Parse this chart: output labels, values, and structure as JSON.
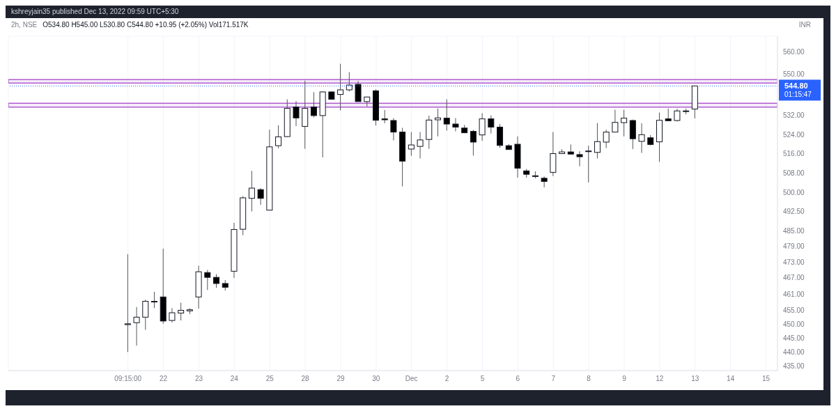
{
  "chart_data": {
    "type": "candlestick",
    "title": "2h, NSE",
    "subtitle": "O534.80 H545.00 L530.80 C544.80 +10.95 (+2.05%) Vol171.517K",
    "ylabel": "INR",
    "annotations": [
      "kshreyjain35 published Dec 13, 2022 09:59 UTC+5:30",
      "01:15:47"
    ],
    "categories": [
      "09:15:00",
      null,
      null,
      null,
      "22",
      null,
      null,
      null,
      "23",
      null,
      null,
      null,
      "24",
      null,
      null,
      null,
      "25",
      null,
      null,
      null,
      "28",
      null,
      null,
      null,
      "29",
      null,
      null,
      null,
      "30",
      null,
      null,
      null,
      "Dec",
      null,
      null,
      null,
      "2",
      null,
      null,
      null,
      "5",
      null,
      null,
      null,
      "6",
      null,
      null,
      null,
      "7",
      null,
      null,
      null,
      "8",
      null,
      null,
      null,
      "9",
      null,
      null,
      null,
      "12",
      null,
      null,
      null,
      "13",
      null,
      null,
      null,
      "14",
      null,
      null,
      null,
      "15"
    ],
    "ohlc": [
      [
        449.8,
        476,
        440,
        450.1
      ],
      [
        450.5,
        456.2,
        442.3,
        452.5
      ],
      [
        452.5,
        458.9,
        447.9,
        458.3
      ],
      [
        458.3,
        461.8,
        455.8,
        458.1
      ],
      [
        459.9,
        478.1,
        450.1,
        451.1
      ],
      [
        451.3,
        455.8,
        450.6,
        454.1
      ],
      [
        454,
        457.8,
        451.3,
        455
      ],
      [
        454.8,
        455.8,
        453.6,
        455.2
      ],
      [
        459.9,
        471.6,
        455.6,
        469.3
      ],
      [
        469,
        470,
        462.5,
        467.2
      ],
      [
        467.2,
        468.4,
        463.3,
        464.9
      ],
      [
        464.9,
        466.2,
        462.3,
        463.5
      ],
      [
        469.5,
        488.1,
        467,
        485.5
      ],
      [
        485.6,
        498.7,
        483.3,
        498
      ],
      [
        497.8,
        508.9,
        492.6,
        501.9
      ],
      [
        501.3,
        501.9,
        495.2,
        497.8
      ],
      [
        493.1,
        526,
        493.1,
        518.8
      ],
      [
        519.3,
        527.9,
        518.2,
        523
      ],
      [
        523.1,
        539,
        522.9,
        535.1
      ],
      [
        535.7,
        538.2,
        527.5,
        531
      ],
      [
        527.4,
        547.1,
        518,
        535.1
      ],
      [
        535.7,
        542.1,
        531.2,
        532
      ],
      [
        532,
        542.5,
        514.4,
        542.2
      ],
      [
        542.2,
        542.4,
        538.8,
        539
      ],
      [
        541.1,
        554.6,
        534.2,
        543.1
      ],
      [
        543.1,
        550.9,
        542.4,
        545.2
      ],
      [
        545.5,
        547,
        538,
        538
      ],
      [
        538,
        540.1,
        535.9,
        540
      ],
      [
        542.7,
        543.3,
        527.8,
        530
      ],
      [
        530.6,
        534.4,
        528.7,
        530.2
      ],
      [
        529.9,
        530.9,
        521.5,
        525
      ],
      [
        525,
        526.8,
        502.6,
        512.9
      ],
      [
        517.9,
        525,
        515.1,
        519.6
      ],
      [
        519,
        525,
        514,
        521.7
      ],
      [
        521.9,
        532,
        518,
        530.1
      ],
      [
        530.2,
        535,
        523.2,
        531
      ],
      [
        530.9,
        539,
        525.6,
        528.4
      ],
      [
        528.4,
        530.9,
        525.3,
        527.1
      ],
      [
        526.7,
        528,
        524.6,
        524.7
      ],
      [
        525.3,
        525.9,
        515.2,
        520.8
      ],
      [
        523.8,
        533,
        521.3,
        530.6
      ],
      [
        530.6,
        532.1,
        524.4,
        527.1
      ],
      [
        527.1,
        528.4,
        518.4,
        519.4
      ],
      [
        519.3,
        519.9,
        517.7,
        517.7
      ],
      [
        519.9,
        523.2,
        506.1,
        510
      ],
      [
        508.9,
        509.7,
        506.1,
        507.5
      ],
      [
        506.9,
        508.7,
        505.9,
        506.7
      ],
      [
        505.9,
        506.6,
        502.2,
        504.6
      ],
      [
        508.3,
        525,
        506.8,
        516
      ],
      [
        516,
        517.8,
        516,
        516.7
      ],
      [
        516.7,
        519.8,
        515.6,
        515.8
      ],
      [
        515.6,
        517,
        510.8,
        514.7
      ],
      [
        516.9,
        519.3,
        504.2,
        517.1
      ],
      [
        516.5,
        528.8,
        514,
        521
      ],
      [
        520.8,
        526,
        518.3,
        525
      ],
      [
        525,
        534.5,
        525,
        529.1
      ],
      [
        529,
        534.5,
        523.2,
        530.9
      ],
      [
        529.9,
        530.3,
        517.9,
        522.2
      ],
      [
        521.1,
        528.7,
        516.3,
        523.9
      ],
      [
        522.6,
        523.7,
        519.4,
        519.8
      ],
      [
        520.9,
        533.3,
        512.6,
        530
      ],
      [
        530.6,
        535,
        529.8,
        529.8
      ],
      [
        529.9,
        534.9,
        529.5,
        534
      ],
      [
        533.8,
        535,
        532.5,
        534
      ],
      [
        534.8,
        545,
        530.8,
        544.8
      ],
      null,
      null,
      null,
      null,
      null,
      null,
      null,
      null
    ],
    "colors": [
      "#ffffff",
      "#ffffff",
      "#ffffff",
      "#000000",
      "#000000",
      "#ffffff",
      "#ffffff",
      "#ffffff",
      "#ffffff",
      "#000000",
      "#000000",
      "#000000",
      "#ffffff",
      "#ffffff",
      "#ffffff",
      "#000000",
      "#ffffff",
      "#ffffff",
      "#ffffff",
      "#000000",
      "#ffffff",
      "#000000",
      "#ffffff",
      "#000000",
      "#ffffff",
      "#ffffff",
      "#000000",
      "#ffffff",
      "#000000",
      "#000000",
      "#000000",
      "#000000",
      "#ffffff",
      "#ffffff",
      "#ffffff",
      "#ffffff",
      "#000000",
      "#000000",
      "#000000",
      "#000000",
      "#ffffff",
      "#000000",
      "#000000",
      "#000000",
      "#000000",
      "#000000",
      "#000000",
      "#000000",
      "#ffffff",
      "#ffffff",
      "#000000",
      "#000000",
      "#ffffff",
      "#ffffff",
      "#ffffff",
      "#ffffff",
      "#ffffff",
      "#000000",
      "#ffffff",
      "#000000",
      "#ffffff",
      "#000000",
      "#ffffff",
      "#ffffff",
      "#ffffff",
      null,
      null,
      null,
      null,
      null,
      null,
      null,
      null
    ],
    "log": "y",
    "ylim": [
      433.5,
      567
    ],
    "yticks": [
      {
        "value": 435,
        "label": "435.00"
      },
      {
        "value": 440,
        "label": "440.00"
      },
      {
        "value": 445,
        "label": "445.00"
      },
      {
        "value": 450,
        "label": "450.00"
      },
      {
        "value": 455,
        "label": "455.00"
      },
      {
        "value": 461,
        "label": "461.00"
      },
      {
        "value": 467,
        "label": "467.00"
      },
      {
        "value": 473,
        "label": "473.00"
      },
      {
        "value": 479,
        "label": "479.00"
      },
      {
        "value": 485,
        "label": "485.00"
      },
      {
        "value": 492.5,
        "label": "492.50"
      },
      {
        "value": 500,
        "label": "500.00"
      },
      {
        "value": 508,
        "label": "508.00"
      },
      {
        "value": 516,
        "label": "516.00"
      },
      {
        "value": 524,
        "label": "524.00"
      },
      {
        "value": 532,
        "label": "532.00"
      },
      {
        "value": 550,
        "label": "550.00"
      },
      {
        "value": 560,
        "label": "560.00"
      }
    ],
    "grid": true,
    "ref_lines": [
      {
        "axis": "y",
        "value": 544.8,
        "label": "544.80",
        "color": "#2962ff",
        "line_style": "dotted"
      }
    ],
    "bands": [
      {
        "axis": "y",
        "from": 546.1,
        "to": 547.6,
        "color": "#b05fd0"
      },
      {
        "axis": "y",
        "from": 535.6,
        "to": 537.3,
        "color": "#b05fd0"
      }
    ]
  }
}
